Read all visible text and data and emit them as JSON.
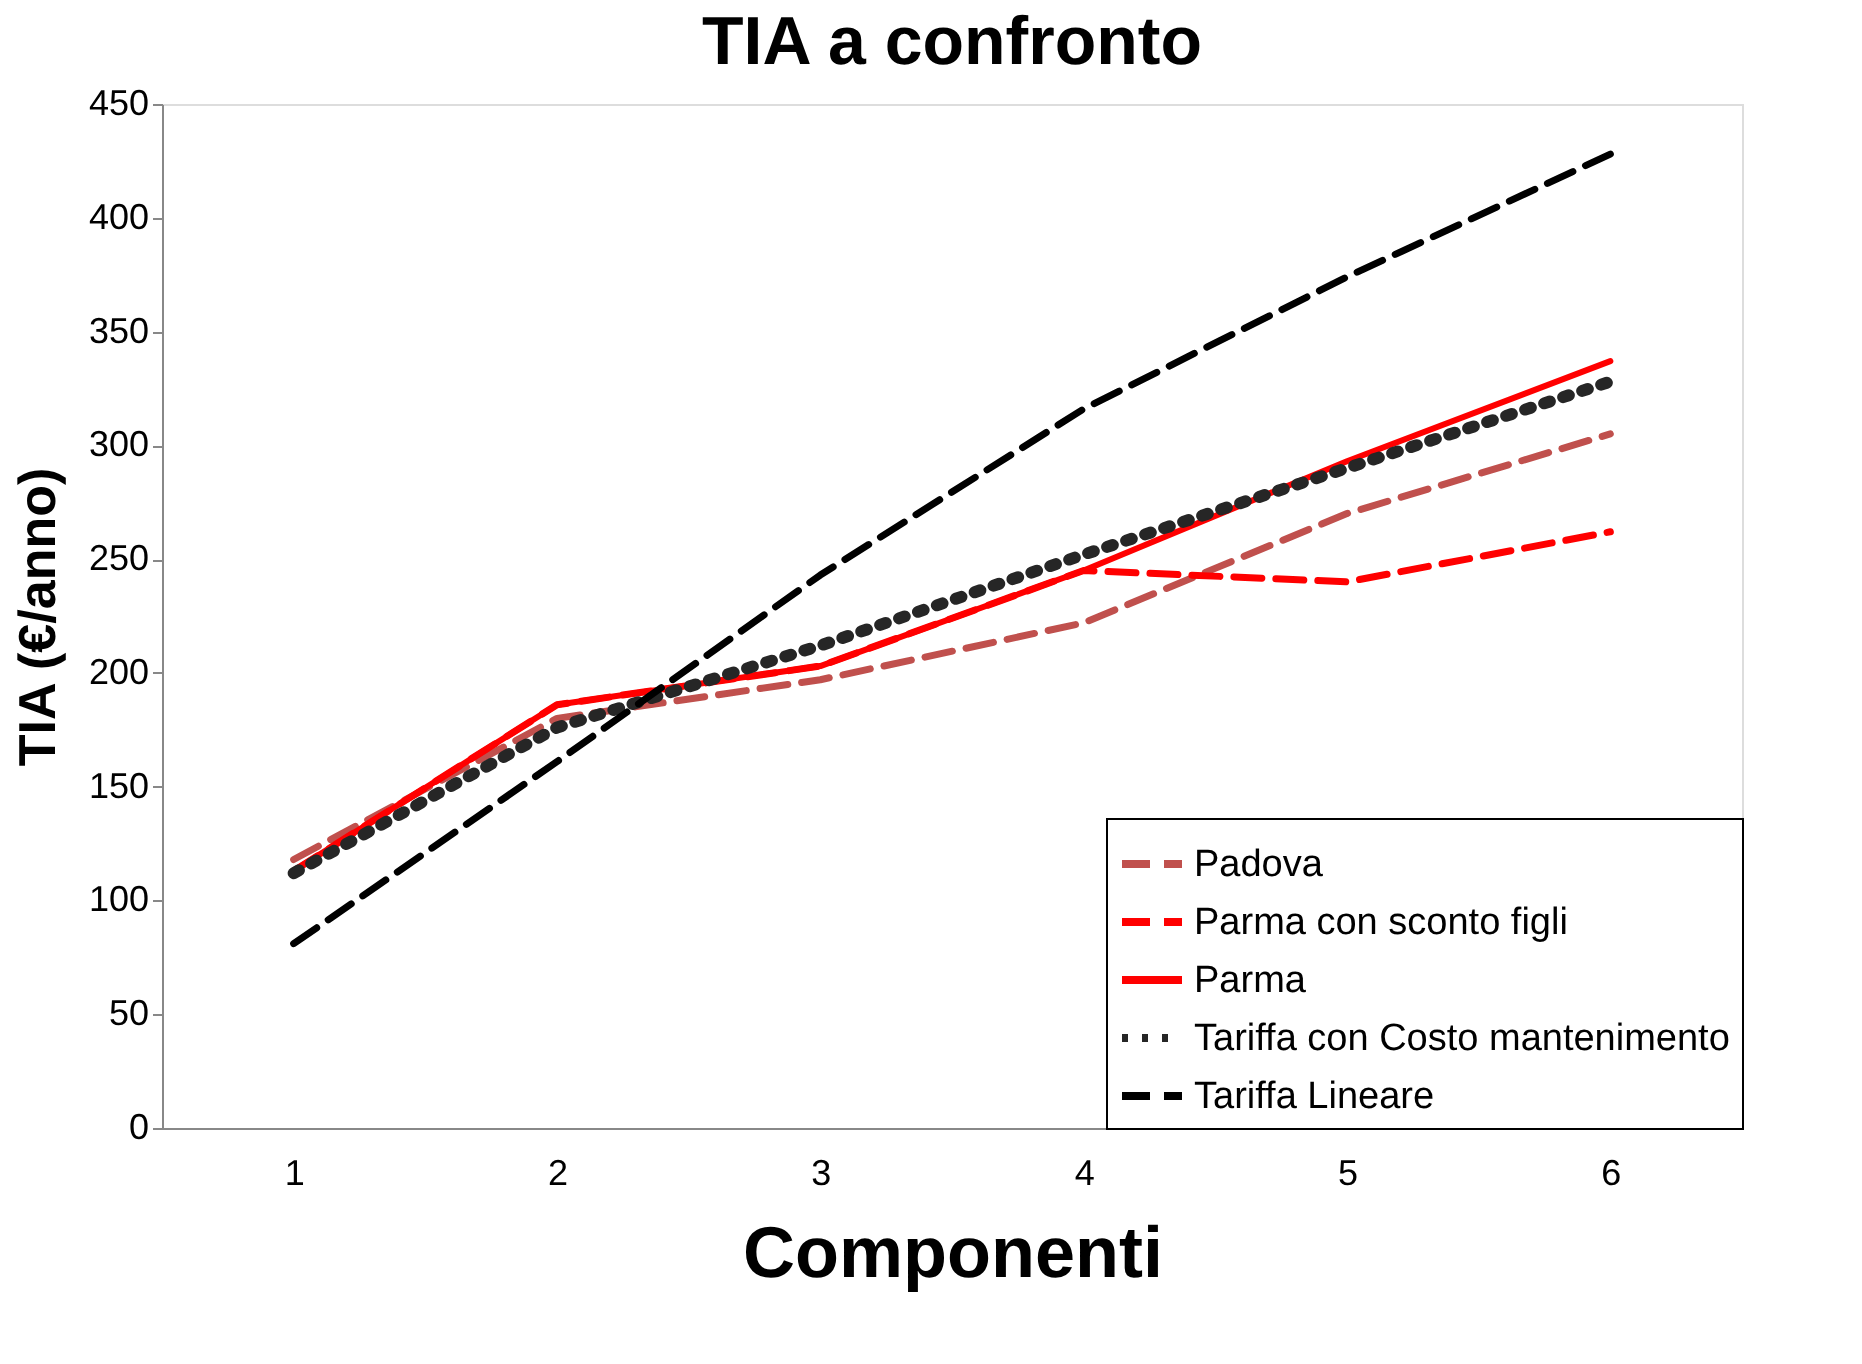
{
  "chart_data": {
    "type": "line",
    "title": "TIA a confronto",
    "xlabel": "Componenti",
    "ylabel": "TIA (€/anno)",
    "categories": [
      "1",
      "2",
      "3",
      "4",
      "5",
      "6"
    ],
    "series": [
      {
        "name": "Padova",
        "color": "#c0504d",
        "line_style": "dashed",
        "values": [
          118,
          180,
          197,
          222,
          270,
          305
        ]
      },
      {
        "name": "Parma con sconto figli",
        "color": "#ff0000",
        "line_style": "dashed",
        "values": [
          113,
          186,
          203,
          245,
          240,
          262
        ]
      },
      {
        "name": "Parma",
        "color": "#ff0000",
        "line_style": "solid",
        "values": [
          113,
          186,
          203,
          245,
          293,
          337
        ]
      },
      {
        "name": "Tariffa con Costo mantenimento",
        "color": "#262626",
        "line_style": "dotted",
        "values": [
          112,
          176,
          212,
          252,
          290,
          328
        ]
      },
      {
        "name": "Tariffa Lineare",
        "color": "#000000",
        "line_style": "dashed",
        "values": [
          81,
          161,
          243,
          316,
          374,
          428
        ]
      }
    ],
    "ylim": [
      0,
      450
    ],
    "yticks": [
      0,
      50,
      100,
      150,
      200,
      250,
      300,
      350,
      400,
      450
    ],
    "grid": false,
    "legend": "bottom right",
    "marker": "none"
  }
}
